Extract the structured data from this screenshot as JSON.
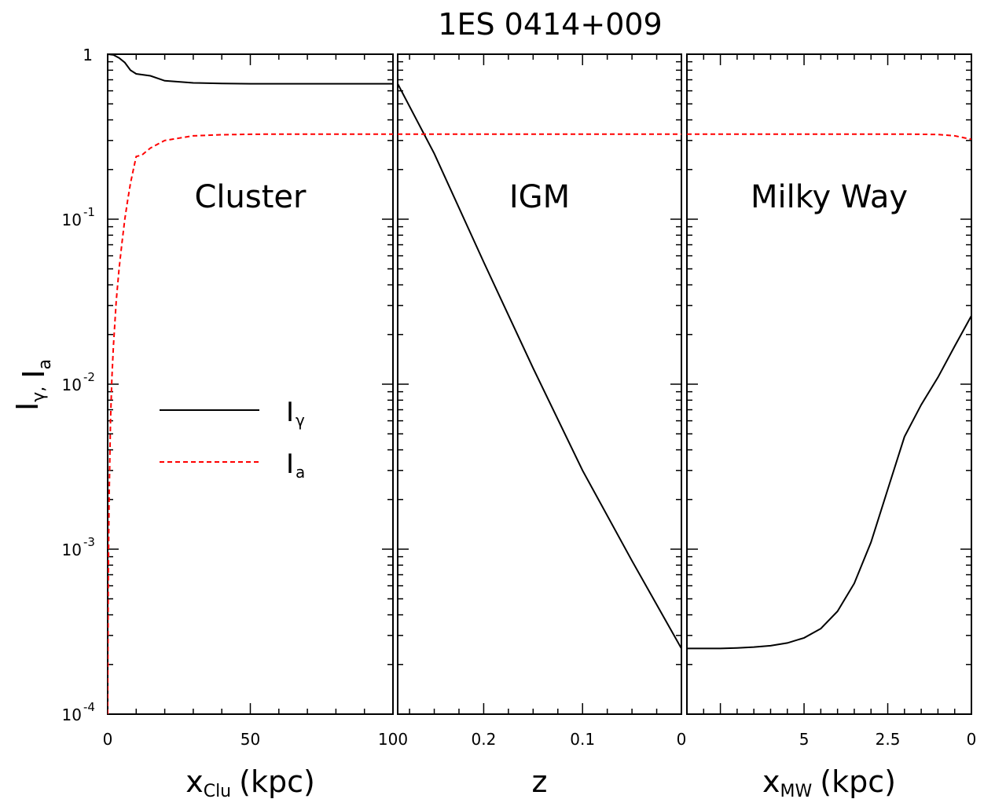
{
  "chart_data": {
    "type": "line",
    "title": "1ES 0414+009",
    "ylabel": "I_γ, I_a",
    "yscale": "log",
    "ylim": [
      0.0001,
      1
    ],
    "y_ticks": [
      {
        "mant": "1",
        "exp": ""
      },
      {
        "mant": "10",
        "exp": "-1"
      },
      {
        "mant": "10",
        "exp": "-2"
      },
      {
        "mant": "10",
        "exp": "-3"
      },
      {
        "mant": "10",
        "exp": "-4"
      }
    ],
    "legend": {
      "placement": "left-middle",
      "entries": [
        {
          "label": "I",
          "sub": "γ",
          "color": "#000000",
          "dash": "solid"
        },
        {
          "label": "I",
          "sub": "a",
          "color": "#ff0000",
          "dash": "dashed"
        }
      ]
    },
    "panels": [
      {
        "name": "Cluster",
        "xlabel_main": "x",
        "xlabel_sub": "Clu",
        "xlabel_unit": "(kpc)",
        "xlim": [
          0,
          100
        ],
        "x_ticks": [
          "0",
          "50",
          "100"
        ],
        "series": [
          {
            "name": "I_γ",
            "color": "#000000",
            "dash": "solid",
            "x": [
              0,
              2,
              4,
              6,
              8,
              10,
              15,
              20,
              30,
              40,
              50,
              60,
              70,
              80,
              90,
              100
            ],
            "y": [
              1.0,
              0.99,
              0.95,
              0.89,
              0.8,
              0.76,
              0.74,
              0.69,
              0.67,
              0.665,
              0.662,
              0.662,
              0.662,
              0.662,
              0.662,
              0.662
            ]
          },
          {
            "name": "I_a",
            "color": "#ff0000",
            "dash": "dashed",
            "x": [
              0,
              0.2,
              0.5,
              1,
              1.5,
              2,
              3,
              4,
              5,
              6,
              7,
              8,
              9,
              10,
              12,
              15,
              20,
              25,
              30,
              40,
              50,
              60,
              70,
              80,
              90,
              100
            ],
            "y": [
              0.0001,
              0.0006,
              0.002,
              0.006,
              0.011,
              0.017,
              0.032,
              0.05,
              0.072,
              0.1,
              0.13,
              0.165,
              0.2,
              0.24,
              0.245,
              0.27,
              0.3,
              0.31,
              0.32,
              0.325,
              0.327,
              0.328,
              0.328,
              0.328,
              0.328,
              0.328
            ]
          }
        ]
      },
      {
        "name": "IGM",
        "xlabel_main": "z",
        "xlabel_sub": "",
        "xlabel_unit": "",
        "xlim": [
          0.287,
          0
        ],
        "x_ticks": [
          "0.2",
          "0.1",
          "0"
        ],
        "series": [
          {
            "name": "I_γ",
            "color": "#000000",
            "dash": "solid",
            "x": [
              0.287,
              0.25,
              0.2,
              0.15,
              0.1,
              0.05,
              0
            ],
            "y": [
              0.662,
              0.25,
              0.055,
              0.0125,
              0.003,
              0.00085,
              0.00025
            ]
          },
          {
            "name": "I_a",
            "color": "#ff0000",
            "dash": "dashed",
            "x": [
              0.287,
              0
            ],
            "y": [
              0.328,
              0.328
            ]
          }
        ]
      },
      {
        "name": "Milky Way",
        "xlabel_main": "x",
        "xlabel_sub": "MW",
        "xlabel_unit": "(kpc)",
        "xlim": [
          8.5,
          0
        ],
        "x_ticks": [
          "5",
          "2.5",
          "0"
        ],
        "series": [
          {
            "name": "I_γ",
            "color": "#000000",
            "dash": "solid",
            "x": [
              8.5,
              8.0,
              7.5,
              7.0,
              6.5,
              6.0,
              5.5,
              5.0,
              4.5,
              4.0,
              3.5,
              3.0,
              2.5,
              2.0,
              1.5,
              1.0,
              0.5,
              0
            ],
            "y": [
              0.00025,
              0.00025,
              0.00025,
              0.000252,
              0.000255,
              0.00026,
              0.00027,
              0.00029,
              0.00033,
              0.00042,
              0.00062,
              0.0011,
              0.0023,
              0.0048,
              0.0075,
              0.011,
              0.017,
              0.026
            ]
          },
          {
            "name": "I_a",
            "color": "#ff0000",
            "dash": "dashed",
            "x": [
              8.5,
              6,
              4,
              2,
              1,
              0.5,
              0
            ],
            "y": [
              0.328,
              0.328,
              0.328,
              0.328,
              0.326,
              0.32,
              0.305
            ]
          }
        ]
      }
    ]
  }
}
